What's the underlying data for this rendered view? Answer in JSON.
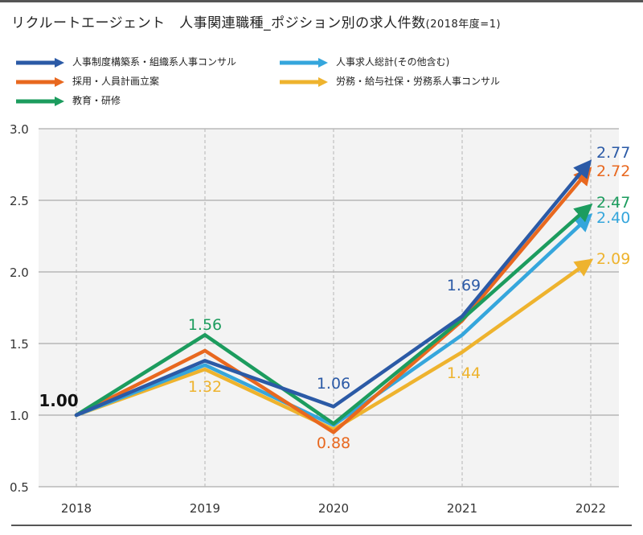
{
  "title": "リクルートエージェント　人事関連職種_ポジション別の求人件数",
  "title_suffix": "(2018年度=1)",
  "chart_data": {
    "type": "line",
    "x": [
      "2018",
      "2019",
      "2020",
      "2021",
      "2022"
    ],
    "ylim": [
      0.5,
      3.0
    ],
    "yticks": [
      "3.0",
      "2.5",
      "2.0",
      "1.5",
      "1.0",
      "0.5"
    ],
    "ytick_values": [
      3.0,
      2.5,
      2.0,
      1.5,
      1.0,
      0.5
    ],
    "grid": true,
    "legend_position": "top",
    "series": [
      {
        "name": "人事制度構築系・組織系人事コンサル",
        "color": "#2b5aa6",
        "values": [
          1.0,
          1.38,
          1.06,
          1.69,
          2.77
        ]
      },
      {
        "name": "人事求人総計(その他含む)",
        "color": "#35a6dc",
        "values": [
          1.0,
          1.35,
          0.93,
          1.56,
          2.4
        ]
      },
      {
        "name": "採用・人員計画立案",
        "color": "#e8681f",
        "values": [
          1.0,
          1.45,
          0.88,
          1.66,
          2.72
        ]
      },
      {
        "name": "労務・給与社保・労務系人事コンサル",
        "color": "#eeb32e",
        "values": [
          1.0,
          1.32,
          0.9,
          1.44,
          2.09
        ]
      },
      {
        "name": "教育・研修",
        "color": "#1c9c5e",
        "values": [
          1.0,
          1.56,
          0.94,
          1.67,
          2.47
        ]
      }
    ],
    "data_labels": [
      {
        "text": "1.00",
        "color": "#111111",
        "series": "start"
      },
      {
        "text": "1.56",
        "color": "#1c9c5e"
      },
      {
        "text": "1.32",
        "color": "#eeb32e"
      },
      {
        "text": "1.06",
        "color": "#2b5aa6"
      },
      {
        "text": "0.88",
        "color": "#e8681f"
      },
      {
        "text": "1.69",
        "color": "#2b5aa6"
      },
      {
        "text": "1.44",
        "color": "#eeb32e"
      },
      {
        "text": "2.77",
        "color": "#2b5aa6"
      },
      {
        "text": "2.72",
        "color": "#e8681f"
      },
      {
        "text": "2.47",
        "color": "#1c9c5e"
      },
      {
        "text": "2.40",
        "color": "#35a6dc"
      },
      {
        "text": "2.09",
        "color": "#eeb32e"
      }
    ]
  }
}
